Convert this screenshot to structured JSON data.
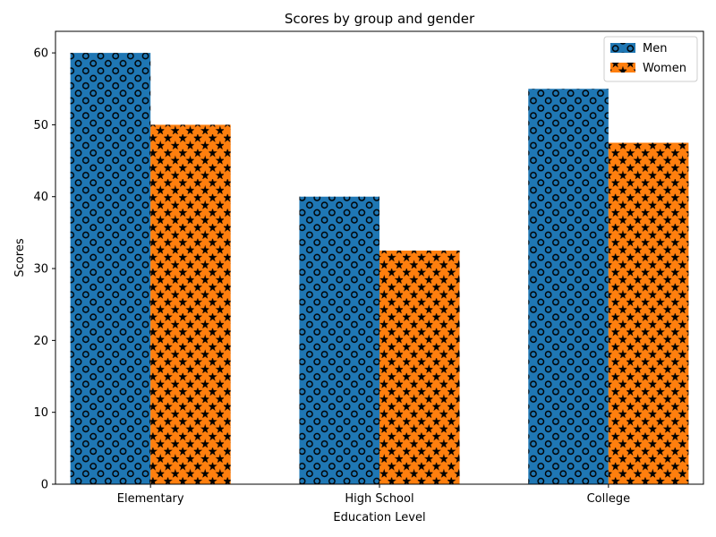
{
  "chart_data": {
    "type": "bar",
    "title": "Scores by group and gender",
    "xlabel": "Education Level",
    "ylabel": "Scores",
    "categories": [
      "Elementary",
      "High School",
      "College"
    ],
    "series": [
      {
        "name": "Men",
        "values": [
          60,
          40,
          55
        ],
        "color": "#1f77b4",
        "hatch": "circles"
      },
      {
        "name": "Women",
        "values": [
          50,
          32.5,
          47.5
        ],
        "color": "#ff7f0e",
        "hatch": "stars"
      }
    ],
    "ylim": [
      0,
      63
    ],
    "yticks": [
      0,
      10,
      20,
      30,
      40,
      50,
      60
    ],
    "grid": false,
    "legend_position": "top-right"
  }
}
